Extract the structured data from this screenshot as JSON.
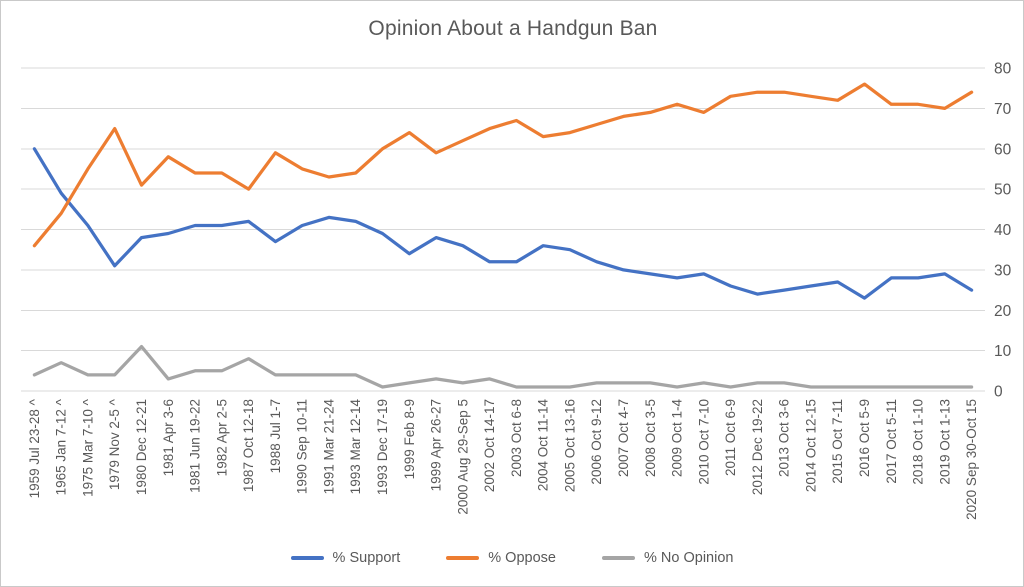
{
  "chart_data": {
    "type": "line",
    "title": "Opinion About a Handgun Ban",
    "categories": [
      "1959 Jul 23-28 ^",
      "1965 Jan 7-12 ^",
      "1975 Mar 7-10 ^",
      "1979 Nov 2-5 ^",
      "1980 Dec 12-21",
      "1981 Apr 3-6",
      "1981 Jun 19-22",
      "1982 Apr 2-5",
      "1987 Oct 12-18",
      "1988 Jul 1-7",
      "1990 Sep 10-11",
      "1991 Mar 21-24",
      "1993 Mar 12-14",
      "1993 Dec 17-19",
      "1999 Feb 8-9",
      "1999 Apr 26-27",
      "2000 Aug 29-Sep 5",
      "2002 Oct 14-17",
      "2003 Oct 6-8",
      "2004 Oct 11-14",
      "2005 Oct 13-16",
      "2006 Oct 9-12",
      "2007 Oct 4-7",
      "2008 Oct 3-5",
      "2009 Oct 1-4",
      "2010 Oct 7-10",
      "2011 Oct 6-9",
      "2012 Dec 19-22",
      "2013 Oct 3-6",
      "2014 Oct 12-15",
      "2015 Oct 7-11",
      "2016 Oct 5-9",
      "2017 Oct 5-11",
      "2018 Oct 1-10",
      "2019 Oct 1-13",
      "2020 Sep 30-Oct 15"
    ],
    "series": [
      {
        "name": "% Support",
        "color": "#4472C4",
        "values": [
          60,
          49,
          41,
          31,
          38,
          39,
          41,
          41,
          42,
          37,
          41,
          43,
          42,
          39,
          34,
          38,
          36,
          32,
          32,
          36,
          35,
          32,
          30,
          29,
          28,
          29,
          26,
          24,
          25,
          26,
          27,
          23,
          28,
          28,
          29,
          25
        ]
      },
      {
        "name": "% Oppose",
        "color": "#ED7D31",
        "values": [
          36,
          44,
          55,
          65,
          51,
          58,
          54,
          54,
          50,
          59,
          55,
          53,
          54,
          60,
          64,
          59,
          62,
          65,
          67,
          63,
          64,
          66,
          68,
          69,
          71,
          69,
          73,
          74,
          74,
          73,
          72,
          76,
          71,
          71,
          70,
          74
        ]
      },
      {
        "name": "% No Opinion",
        "color": "#A5A5A5",
        "values": [
          4,
          7,
          4,
          4,
          11,
          3,
          5,
          5,
          8,
          4,
          4,
          4,
          4,
          1,
          2,
          3,
          2,
          3,
          1,
          1,
          1,
          2,
          2,
          2,
          1,
          2,
          1,
          2,
          2,
          1,
          1,
          1,
          1,
          1,
          1,
          1
        ]
      }
    ],
    "y_axis": {
      "min": 0,
      "max": 80,
      "step": 10,
      "side": "right",
      "ticks": [
        0,
        10,
        20,
        30,
        40,
        50,
        60,
        70,
        80
      ]
    },
    "x_axis": {
      "label_rotation_deg": 90
    },
    "grid": true,
    "legend_position": "bottom",
    "background_color": "#FFFFFF",
    "text_color": "#595959",
    "gridline_color": "#D9D9D9"
  }
}
